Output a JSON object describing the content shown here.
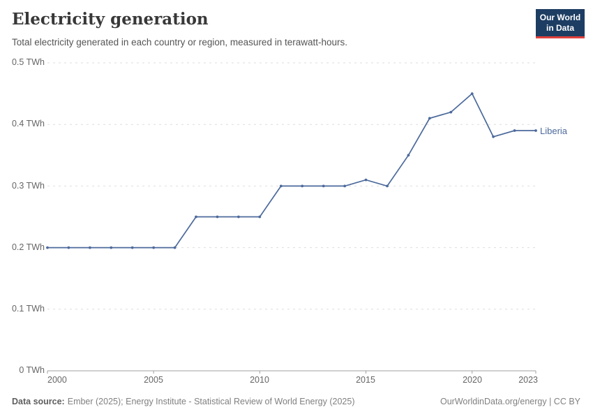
{
  "header": {
    "title": "Electricity generation",
    "subtitle": "Total electricity generated in each country or region, measured in terawatt-hours.",
    "logo": {
      "line1": "Our World",
      "line2": "in Data",
      "bg_color": "#1d3d63",
      "accent_color": "#e0403c"
    }
  },
  "chart_data": {
    "type": "line",
    "title": "Electricity generation",
    "unit": "TWh",
    "x": [
      2000,
      2001,
      2002,
      2003,
      2004,
      2005,
      2006,
      2007,
      2008,
      2009,
      2010,
      2011,
      2012,
      2013,
      2014,
      2015,
      2016,
      2017,
      2018,
      2019,
      2020,
      2021,
      2022,
      2023
    ],
    "series": [
      {
        "name": "Liberia",
        "color": "#4C6A9C",
        "values": [
          0.2,
          0.2,
          0.2,
          0.2,
          0.2,
          0.2,
          0.2,
          0.25,
          0.25,
          0.25,
          0.25,
          0.3,
          0.3,
          0.3,
          0.3,
          0.31,
          0.3,
          0.35,
          0.41,
          0.42,
          0.45,
          0.38,
          0.39,
          0.39
        ]
      }
    ],
    "xlim": [
      2000,
      2023
    ],
    "ylim": [
      0,
      0.5
    ],
    "grid": true,
    "legend_position": "end-of-line",
    "y_ticks": [
      0,
      0.1,
      0.2,
      0.3,
      0.4,
      0.5
    ],
    "y_tick_labels": [
      "0 TWh",
      "0.1 TWh",
      "0.2 TWh",
      "0.3 TWh",
      "0.4 TWh",
      "0.5 TWh"
    ],
    "x_ticks": [
      2000,
      2005,
      2010,
      2015,
      2020,
      2023
    ],
    "x_tick_labels": [
      "2000",
      "2005",
      "2010",
      "2015",
      "2020",
      "2023"
    ],
    "grid_color": "#dedede",
    "axis_color": "#a1a1a1"
  },
  "footer": {
    "source_label": "Data source:",
    "source_text": "Ember (2025); Energy Institute - Statistical Review of World Energy (2025)",
    "right_text": "OurWorldinData.org/energy | CC BY"
  }
}
